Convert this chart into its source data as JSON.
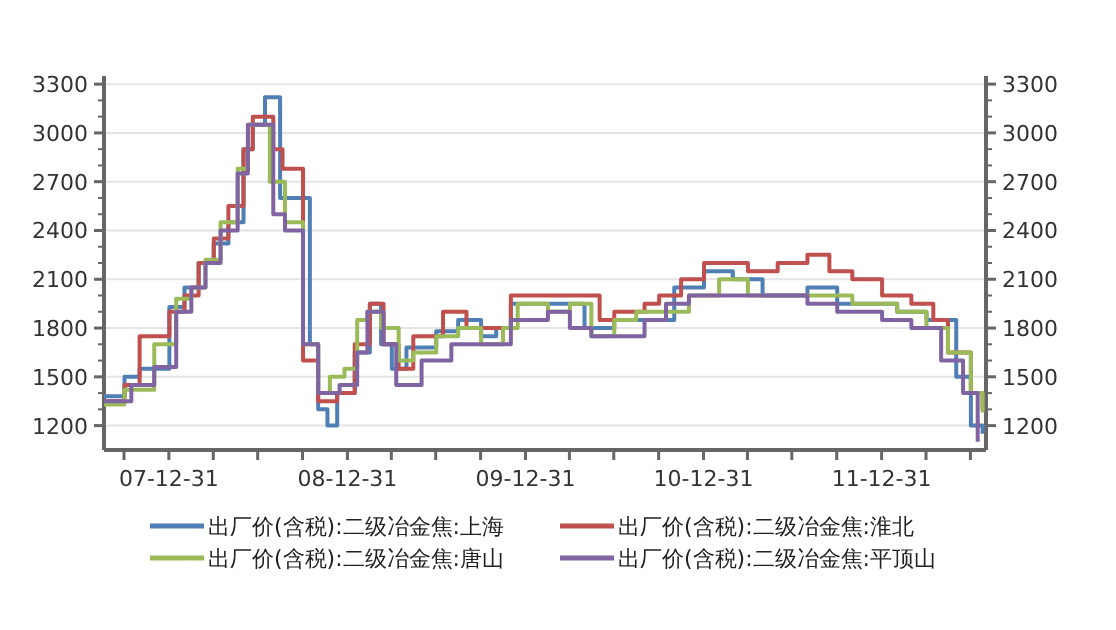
{
  "chart_data": {
    "type": "step",
    "grid": "y",
    "legend": "bottom",
    "xlim": [
      "2007-08-20",
      "2012-08-01"
    ],
    "xticks": [
      {
        "value": "2007-09-30",
        "label": null
      },
      {
        "value": "2007-12-31",
        "label": "07-12-31"
      },
      {
        "value": "2008-03-31",
        "label": null
      },
      {
        "value": "2008-06-30",
        "label": null
      },
      {
        "value": "2008-09-30",
        "label": null
      },
      {
        "value": "2008-12-31",
        "label": "08-12-31"
      },
      {
        "value": "2009-03-31",
        "label": null
      },
      {
        "value": "2009-06-30",
        "label": null
      },
      {
        "value": "2009-09-30",
        "label": null
      },
      {
        "value": "2009-12-31",
        "label": "09-12-31"
      },
      {
        "value": "2010-03-31",
        "label": null
      },
      {
        "value": "2010-06-30",
        "label": null
      },
      {
        "value": "2010-09-30",
        "label": null
      },
      {
        "value": "2010-12-31",
        "label": "10-12-31"
      },
      {
        "value": "2011-03-31",
        "label": null
      },
      {
        "value": "2011-06-30",
        "label": null
      },
      {
        "value": "2011-09-30",
        "label": null
      },
      {
        "value": "2011-12-31",
        "label": "11-12-31"
      },
      {
        "value": "2012-03-31",
        "label": null
      },
      {
        "value": "2012-06-30",
        "label": null
      }
    ],
    "ylim": [
      1050,
      3350
    ],
    "yticks": [
      1200,
      1500,
      1800,
      2100,
      2400,
      2700,
      3000,
      3300
    ],
    "y2lim": [
      1050,
      3350
    ],
    "y2ticks": [
      1200,
      1500,
      1800,
      2100,
      2400,
      2700,
      3000,
      3300
    ],
    "series": [
      {
        "name": "出厂价(含税):二级冶金焦:上海",
        "color": "#4f7fb5",
        "x": [
          "2007-08-20",
          "2007-10-01",
          "2007-11-01",
          "2008-01-01",
          "2008-02-01",
          "2008-03-01",
          "2008-04-01",
          "2008-05-01",
          "2008-06-01",
          "2008-06-20",
          "2008-07-15",
          "2008-08-15",
          "2008-09-15",
          "2008-10-15",
          "2008-11-01",
          "2008-11-20",
          "2008-12-10",
          "2009-01-15",
          "2009-02-15",
          "2009-03-10",
          "2009-04-01",
          "2009-05-01",
          "2009-07-01",
          "2009-08-15",
          "2009-10-01",
          "2009-11-01",
          "2009-12-01",
          "2010-03-01",
          "2010-05-01",
          "2010-07-01",
          "2010-11-01",
          "2011-01-01",
          "2011-03-01",
          "2011-05-01",
          "2011-08-01",
          "2011-10-01",
          "2012-02-01",
          "2012-04-01",
          "2012-06-01",
          "2012-07-01",
          "2012-07-25"
        ],
        "values": [
          1380,
          1500,
          1550,
          1930,
          2050,
          2200,
          2320,
          2450,
          2900,
          3050,
          3220,
          2600,
          2600,
          1700,
          1300,
          1200,
          1400,
          1650,
          1950,
          1700,
          1550,
          1680,
          1780,
          1850,
          1750,
          1800,
          1950,
          1950,
          1800,
          1850,
          2050,
          2150,
          2100,
          2000,
          2050,
          1950,
          1900,
          1850,
          1500,
          1200,
          1150
        ]
      },
      {
        "name": "出厂价(含税):二级冶金焦:淮北",
        "color": "#c0504d",
        "x": [
          "2007-08-20",
          "2007-10-01",
          "2007-11-01",
          "2008-01-01",
          "2008-02-01",
          "2008-03-01",
          "2008-04-01",
          "2008-05-01",
          "2008-06-01",
          "2008-06-20",
          "2008-08-01",
          "2008-08-20",
          "2008-10-01",
          "2008-11-01",
          "2008-12-10",
          "2009-01-15",
          "2009-02-15",
          "2009-03-15",
          "2009-04-15",
          "2009-05-15",
          "2009-07-15",
          "2009-09-01",
          "2009-12-01",
          "2010-06-01",
          "2010-07-01",
          "2010-09-01",
          "2010-10-01",
          "2010-11-15",
          "2011-01-01",
          "2011-04-01",
          "2011-06-01",
          "2011-08-01",
          "2011-09-15",
          "2011-11-01",
          "2012-01-01",
          "2012-03-01",
          "2012-04-15",
          "2012-05-15",
          "2012-07-01",
          "2012-07-25"
        ],
        "values": [
          1350,
          1450,
          1750,
          1900,
          2000,
          2200,
          2350,
          2550,
          2900,
          3100,
          2900,
          2780,
          1600,
          1350,
          1400,
          1700,
          1950,
          1700,
          1550,
          1750,
          1900,
          1800,
          2000,
          1850,
          1900,
          1950,
          2000,
          2100,
          2200,
          2150,
          2200,
          2250,
          2150,
          2100,
          2000,
          1950,
          1850,
          1650,
          1400,
          1300
        ]
      },
      {
        "name": "出厂价(含税):二级冶金焦:唐山",
        "color": "#9bbb59",
        "x": [
          "2007-08-20",
          "2007-10-01",
          "2007-12-01",
          "2008-01-15",
          "2008-02-15",
          "2008-03-15",
          "2008-04-15",
          "2008-05-20",
          "2008-06-10",
          "2008-07-25",
          "2008-08-25",
          "2008-10-01",
          "2008-11-01",
          "2008-11-25",
          "2008-12-25",
          "2009-01-20",
          "2009-02-10",
          "2009-03-10",
          "2009-04-15",
          "2009-05-15",
          "2009-07-01",
          "2009-08-15",
          "2009-10-01",
          "2009-11-15",
          "2009-12-15",
          "2010-02-15",
          "2010-04-01",
          "2010-05-15",
          "2010-07-01",
          "2010-08-15",
          "2010-10-01",
          "2010-12-01",
          "2011-02-01",
          "2011-04-01",
          "2011-09-01",
          "2011-11-01",
          "2012-02-01",
          "2012-04-01",
          "2012-05-15",
          "2012-07-01",
          "2012-07-25"
        ],
        "values": [
          1330,
          1420,
          1700,
          1980,
          2050,
          2220,
          2450,
          2780,
          3050,
          2700,
          2450,
          1700,
          1400,
          1500,
          1550,
          1850,
          1900,
          1800,
          1600,
          1650,
          1750,
          1800,
          1700,
          1800,
          1950,
          1900,
          1950,
          1750,
          1850,
          1900,
          1900,
          2000,
          2100,
          2000,
          2000,
          1950,
          1900,
          1800,
          1650,
          1400,
          1280
        ]
      },
      {
        "name": "出厂价(含税):二级冶金焦:平顶山",
        "color": "#8064a2",
        "x": [
          "2007-08-20",
          "2007-10-15",
          "2007-12-01",
          "2008-01-15",
          "2008-02-15",
          "2008-03-15",
          "2008-04-15",
          "2008-05-20",
          "2008-06-10",
          "2008-08-01",
          "2008-08-25",
          "2008-10-01",
          "2008-11-01",
          "2008-12-15",
          "2009-01-20",
          "2009-02-10",
          "2009-03-15",
          "2009-04-10",
          "2009-06-01",
          "2009-08-01",
          "2009-09-15",
          "2009-12-01",
          "2010-02-15",
          "2010-04-01",
          "2010-05-15",
          "2010-09-01",
          "2010-10-15",
          "2010-12-01",
          "2011-03-01",
          "2011-08-01",
          "2011-10-01",
          "2012-01-01",
          "2012-03-01",
          "2012-05-01",
          "2012-06-15",
          "2012-07-15"
        ],
        "values": [
          1350,
          1450,
          1560,
          1900,
          2050,
          2200,
          2400,
          2750,
          3050,
          2500,
          2400,
          1700,
          1400,
          1450,
          1650,
          1900,
          1700,
          1450,
          1600,
          1700,
          1700,
          1850,
          1900,
          1800,
          1750,
          1850,
          1950,
          2000,
          2000,
          1950,
          1900,
          1850,
          1800,
          1600,
          1400,
          1100
        ]
      }
    ]
  }
}
